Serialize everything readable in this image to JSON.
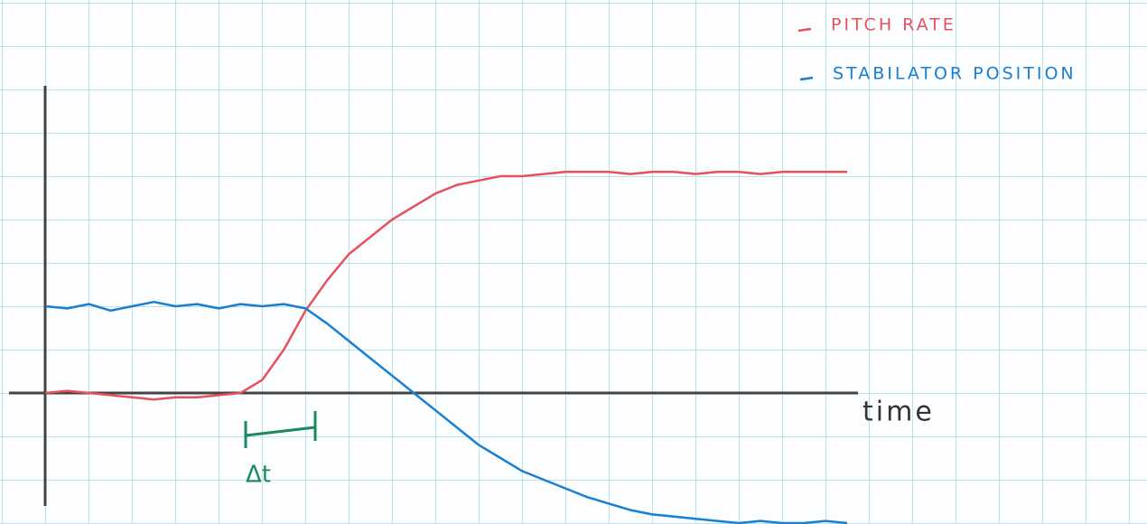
{
  "chart_data": {
    "type": "line",
    "x": [
      0,
      0.5,
      1,
      1.5,
      2,
      2.5,
      3,
      3.5,
      4,
      4.5,
      5,
      5.5,
      6,
      6.5,
      7,
      7.5,
      8,
      8.5,
      9,
      9.5,
      10,
      10.5,
      11,
      11.5,
      12,
      12.5,
      13,
      13.5,
      14,
      14.5,
      15,
      15.5,
      16,
      16.5,
      17,
      17.5,
      18,
      18.5
    ],
    "series": [
      {
        "name": "PITCH RATE",
        "color": "#e8505b",
        "values": [
          0,
          0.05,
          0,
          -0.05,
          -0.1,
          -0.15,
          -0.1,
          -0.1,
          -0.05,
          0,
          0.3,
          1.0,
          1.9,
          2.6,
          3.2,
          3.6,
          4.0,
          4.3,
          4.6,
          4.8,
          4.9,
          5.0,
          5.0,
          5.05,
          5.1,
          5.1,
          5.1,
          5.05,
          5.1,
          5.1,
          5.05,
          5.1,
          5.1,
          5.05,
          5.1,
          5.1,
          5.1,
          5.1
        ]
      },
      {
        "name": "STABILATOR POSITION",
        "color": "#1a7fd0",
        "values": [
          2.0,
          1.95,
          2.05,
          1.9,
          2.0,
          2.1,
          2.0,
          2.05,
          1.95,
          2.05,
          2.0,
          2.05,
          1.95,
          1.6,
          1.2,
          0.8,
          0.4,
          0.0,
          -0.4,
          -0.8,
          -1.2,
          -1.5,
          -1.8,
          -2.0,
          -2.2,
          -2.4,
          -2.55,
          -2.7,
          -2.8,
          -2.85,
          -2.9,
          -2.95,
          -3.0,
          -2.95,
          -3.0,
          -3.0,
          -2.95,
          -3.0
        ]
      }
    ],
    "xlim": [
      -0.8,
      18.75
    ],
    "ylim": [
      -3,
      7
    ],
    "x_label": "time",
    "annotation": "Δt"
  }
}
